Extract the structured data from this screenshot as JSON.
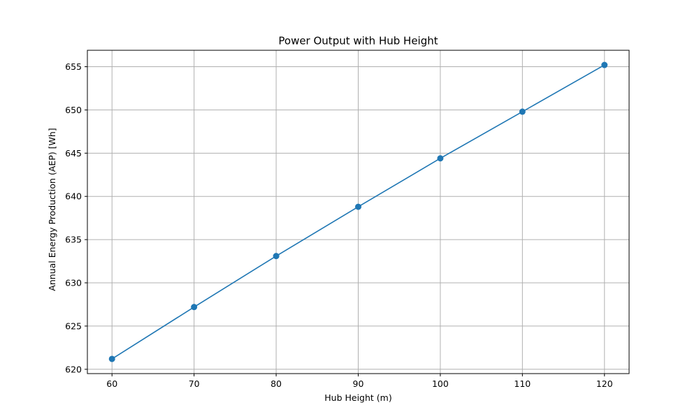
{
  "chart_data": {
    "type": "line",
    "title": "Power Output with Hub Height",
    "xlabel": "Hub Height (m)",
    "ylabel": "Annual Energy Production (AEP) [Wh]",
    "x": [
      60,
      70,
      80,
      90,
      100,
      110,
      120
    ],
    "series": [
      {
        "values": [
          621.2,
          627.2,
          633.1,
          638.8,
          644.4,
          649.8,
          655.2
        ],
        "color": "#1f77b4",
        "marker": "circle"
      }
    ],
    "xticks": [
      60,
      70,
      80,
      90,
      100,
      110,
      120
    ],
    "yticks": [
      620,
      625,
      630,
      635,
      640,
      645,
      650,
      655
    ],
    "xlim": [
      57,
      123
    ],
    "ylim": [
      619.5,
      656.9
    ],
    "grid": true,
    "colors": {
      "grid": "#b0b0b0",
      "axes": "#000000"
    }
  }
}
